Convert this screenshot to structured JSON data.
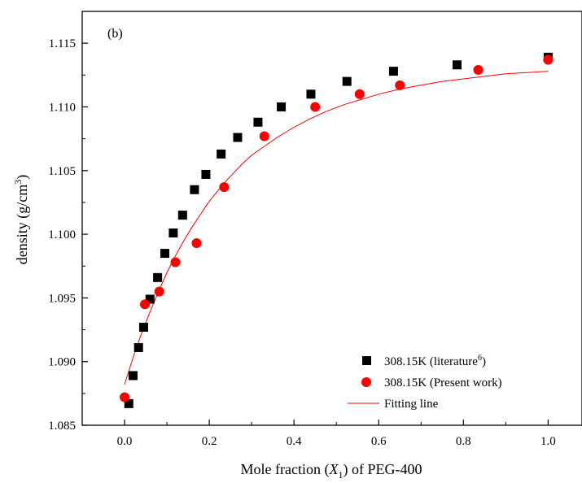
{
  "chart_data": {
    "type": "scatter",
    "panel_label": "(b)",
    "xlabel": {
      "prefix": "Mole fraction (",
      "var": "X",
      "sub": "1",
      "suffix": ") of PEG-400"
    },
    "ylabel": {
      "prefix": "density (g/cm",
      "sup": "3",
      "suffix": ")"
    },
    "xlim": [
      -0.1,
      1.08
    ],
    "ylim": [
      1.085,
      1.1175
    ],
    "xticks": [
      0.0,
      0.2,
      0.4,
      0.6,
      0.8,
      1.0
    ],
    "xtick_labels": [
      "0.0",
      "0.2",
      "0.4",
      "0.6",
      "0.8",
      "1.0"
    ],
    "yticks": [
      1.085,
      1.09,
      1.095,
      1.1,
      1.105,
      1.11,
      1.115
    ],
    "ytick_labels": [
      "1.085",
      "1.090",
      "1.095",
      "1.100",
      "1.105",
      "1.110",
      "1.115"
    ],
    "grid": false,
    "legend_position": "bottom-right",
    "series": [
      {
        "name": "308.15K (literature",
        "name_sup": "6",
        "name_suffix": ")",
        "marker": "square",
        "color": "#000000",
        "x": [
          0.01,
          0.02,
          0.033,
          0.045,
          0.06,
          0.078,
          0.095,
          0.115,
          0.137,
          0.165,
          0.192,
          0.228,
          0.267,
          0.315,
          0.37,
          0.44,
          0.525,
          0.635,
          0.785,
          1.0
        ],
        "y": [
          1.0867,
          1.0889,
          1.0911,
          1.0927,
          1.0949,
          1.0966,
          1.0985,
          1.1001,
          1.1015,
          1.1035,
          1.1047,
          1.1063,
          1.1076,
          1.1088,
          1.11,
          1.111,
          1.112,
          1.1128,
          1.1133,
          1.1139
        ]
      },
      {
        "name": "308.15K (Present work)",
        "marker": "circle",
        "color": "#ff0000",
        "x": [
          0.0,
          0.048,
          0.082,
          0.12,
          0.17,
          0.235,
          0.33,
          0.45,
          0.555,
          0.65,
          0.835,
          1.0
        ],
        "y": [
          1.0872,
          1.0945,
          1.0955,
          1.0978,
          1.0993,
          1.1037,
          1.1077,
          1.11,
          1.111,
          1.1117,
          1.1129,
          1.1137
        ]
      },
      {
        "name": "Fitting line",
        "marker": "line",
        "color": "#ff0000",
        "x": [
          0.0,
          0.02,
          0.04,
          0.06,
          0.08,
          0.1,
          0.12,
          0.14,
          0.16,
          0.18,
          0.2,
          0.22,
          0.24,
          0.26,
          0.28,
          0.3,
          0.33,
          0.36,
          0.4,
          0.44,
          0.48,
          0.52,
          0.56,
          0.6,
          0.65,
          0.7,
          0.75,
          0.8,
          0.85,
          0.9,
          0.95,
          1.0
        ],
        "y": [
          1.0882,
          1.0903,
          1.0922,
          1.0939,
          1.0955,
          1.097,
          1.0983,
          1.0995,
          1.1006,
          1.1016,
          1.1026,
          1.1034,
          1.1042,
          1.1049,
          1.1056,
          1.1062,
          1.1069,
          1.1076,
          1.1084,
          1.1091,
          1.1097,
          1.1102,
          1.1106,
          1.111,
          1.1114,
          1.1117,
          1.112,
          1.1122,
          1.1124,
          1.1126,
          1.1127,
          1.1128
        ]
      }
    ]
  }
}
